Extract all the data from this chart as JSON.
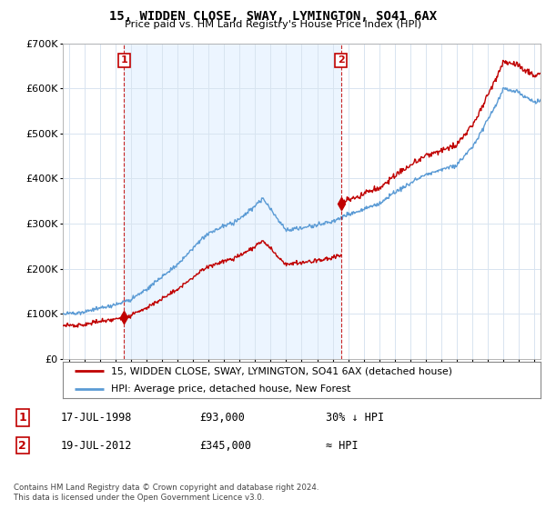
{
  "title": "15, WIDDEN CLOSE, SWAY, LYMINGTON, SO41 6AX",
  "subtitle": "Price paid vs. HM Land Registry's House Price Index (HPI)",
  "ylim": [
    0,
    700000
  ],
  "xlim": [
    1994.6,
    2025.4
  ],
  "background_color": "#ffffff",
  "plot_bg_color": "#ffffff",
  "grid_color": "#d8e4f0",
  "hpi_color": "#5b9bd5",
  "price_color": "#c00000",
  "shade_color": "#ddeeff",
  "transaction1": {
    "date": 1998.54,
    "price": 93000,
    "label": "1"
  },
  "transaction2": {
    "date": 2012.54,
    "price": 345000,
    "label": "2"
  },
  "legend_line1": "15, WIDDEN CLOSE, SWAY, LYMINGTON, SO41 6AX (detached house)",
  "legend_line2": "HPI: Average price, detached house, New Forest",
  "footer1": "Contains HM Land Registry data © Crown copyright and database right 2024.",
  "footer2": "This data is licensed under the Open Government Licence v3.0.",
  "table_row1": [
    "1",
    "17-JUL-1998",
    "£93,000",
    "30% ↓ HPI"
  ],
  "table_row2": [
    "2",
    "19-JUL-2012",
    "£345,000",
    "≈ HPI"
  ],
  "yticks": [
    0,
    100000,
    200000,
    300000,
    400000,
    500000,
    600000,
    700000
  ],
  "xticks": [
    1995,
    1996,
    1997,
    1998,
    1999,
    2000,
    2001,
    2002,
    2003,
    2004,
    2005,
    2006,
    2007,
    2008,
    2009,
    2010,
    2011,
    2012,
    2013,
    2014,
    2015,
    2016,
    2017,
    2018,
    2019,
    2020,
    2021,
    2022,
    2023,
    2024,
    2025
  ]
}
